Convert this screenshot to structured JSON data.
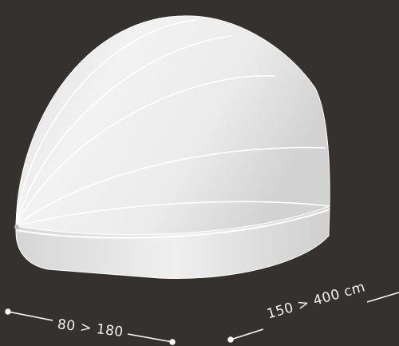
{
  "product": {
    "name": "retractable-dome-canopy",
    "colors": {
      "background": "#35312e",
      "canopy": "#ececec",
      "canopy_shadow": "#cfcfcf",
      "seam": "#ffffff",
      "dimension_line": "#ffffff"
    }
  },
  "dimensions": {
    "depth_label": "80 > 180",
    "width_label": "150 > 400 cm"
  }
}
